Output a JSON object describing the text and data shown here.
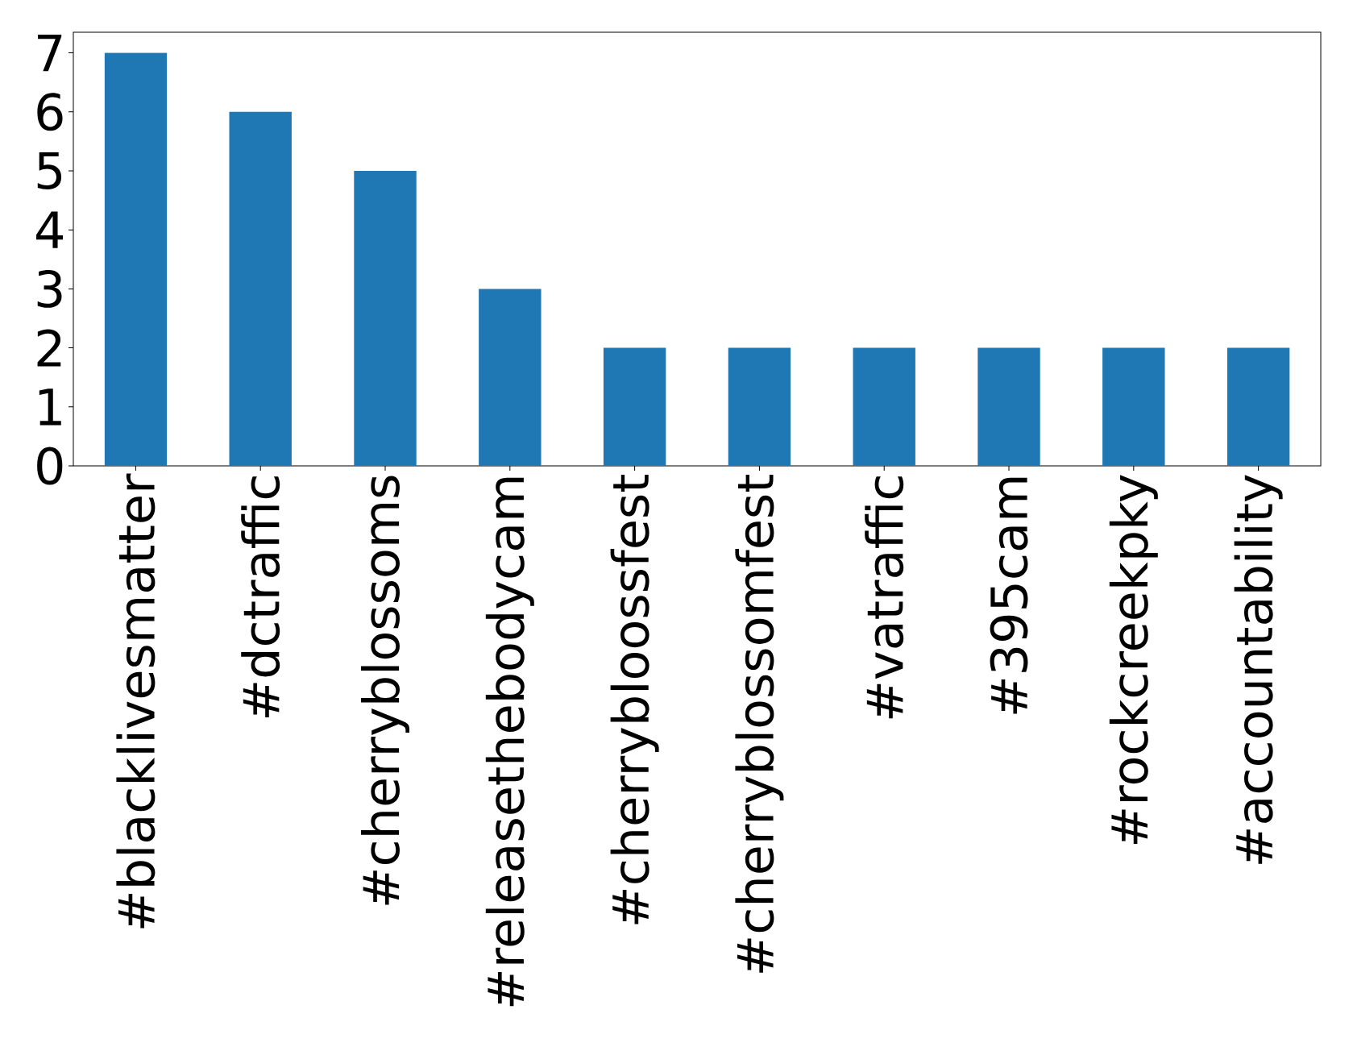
{
  "chart_data": {
    "type": "bar",
    "categories": [
      "#blacklivesmatter",
      "#dctraffic",
      "#cherryblossoms",
      "#releasethebodycam",
      "#cherrybloossfest",
      "#cherryblossomfest",
      "#vatraffic",
      "#395cam",
      "#rockcreekpky",
      "#accountability"
    ],
    "values": [
      7,
      6,
      5,
      3,
      2,
      2,
      2,
      2,
      2,
      2
    ],
    "color": "#1f77b4",
    "ylim": [
      0,
      7.35
    ],
    "yticks": [
      0,
      1,
      2,
      3,
      4,
      5,
      6,
      7
    ],
    "grid": false
  }
}
